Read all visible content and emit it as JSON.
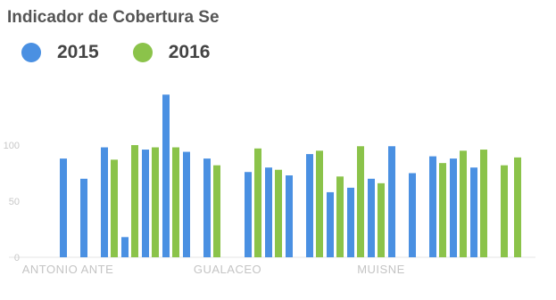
{
  "chart_data": {
    "type": "bar",
    "title": "Indicador de Cobertura Se",
    "xlabel": "",
    "ylabel": "",
    "ylim": [
      0,
      150
    ],
    "yticks": [
      0,
      50,
      100
    ],
    "legend_position": "top-left",
    "grid": false,
    "colors": {
      "2015": "#4a90e2",
      "2016": "#8bc34a"
    },
    "series": [
      {
        "name": "2015",
        "values": [
          88,
          70,
          98,
          18,
          96,
          145,
          94,
          88,
          null,
          76,
          80,
          73,
          92,
          58,
          62,
          70,
          99,
          75,
          90,
          88,
          80,
          null
        ]
      },
      {
        "name": "2016",
        "values": [
          null,
          null,
          87,
          100,
          98,
          98,
          null,
          82,
          null,
          97,
          78,
          null,
          95,
          72,
          99,
          66,
          null,
          null,
          84,
          95,
          96,
          82
        ]
      }
    ],
    "extra_bars": [
      {
        "series": "2016",
        "value": 89
      }
    ],
    "category_labels": [
      "ANTONIO ANTE",
      "GUALACEO",
      "MUISNE"
    ]
  }
}
